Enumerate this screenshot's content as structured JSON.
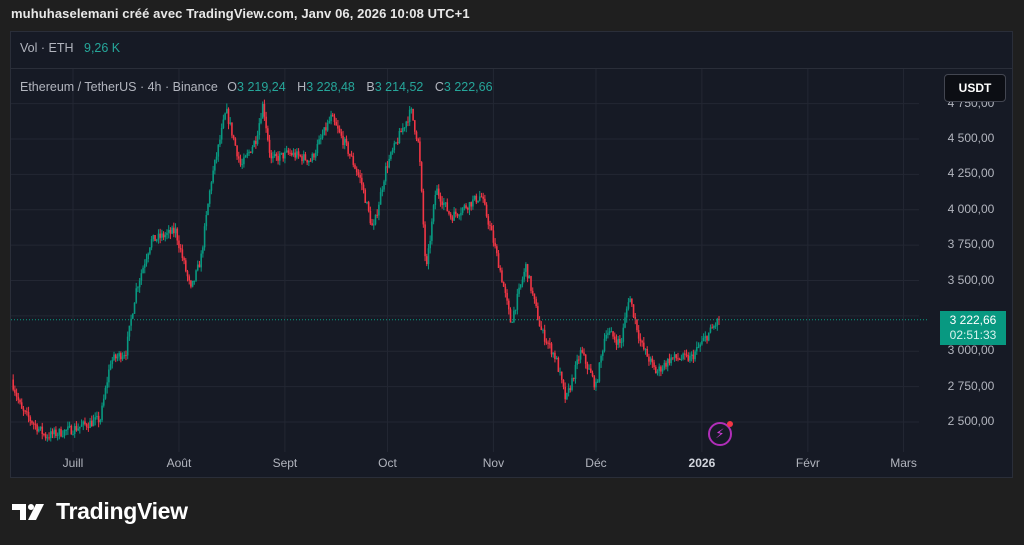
{
  "caption": "muhuhaselemani créé avec TradingView.com, Janv 06, 2026 10:08 UTC+1",
  "volume": {
    "label": "Vol · ETH",
    "value": "9,26 K"
  },
  "legend": {
    "symbol": "Ethereum / TetherUS · 4h · Binance",
    "open_label": "O",
    "open": "3 219,24",
    "high_label": "H",
    "high": "3 228,48",
    "low_label": "B",
    "low": "3 214,52",
    "close_label": "C",
    "close": "3 222,66"
  },
  "currency_button": "USDT",
  "last_price": {
    "price": "3 222,66",
    "countdown": "02:51:33"
  },
  "footer": {
    "brand": "TradingView"
  },
  "icons": {
    "alert": "lightning-icon",
    "logo": "tradingview-logo-icon"
  },
  "colors": {
    "up": "#089981",
    "down": "#f23645",
    "bg": "#161a25",
    "grid": "#232733",
    "accent": "#26a69a"
  },
  "chart_data": {
    "type": "candlestick",
    "interval": "4h",
    "x_unit": "days since Jul 1 2025",
    "ylim": [
      2300,
      4820
    ],
    "y_ticks": [
      {
        "value": 2500,
        "label": "2 500,00"
      },
      {
        "value": 2750,
        "label": "2 750,00"
      },
      {
        "value": 3000,
        "label": "3 000,00"
      },
      {
        "value": 3250,
        "label": ""
      },
      {
        "value": 3500,
        "label": "3 500,00"
      },
      {
        "value": 3750,
        "label": "3 750,00"
      },
      {
        "value": 4000,
        "label": "4 000,00"
      },
      {
        "value": 4250,
        "label": "4 250,00"
      },
      {
        "value": 4500,
        "label": "4 500,00"
      },
      {
        "value": 4750,
        "label": "4 750,00"
      }
    ],
    "x_ticks": [
      {
        "day": 0,
        "label": "Juill"
      },
      {
        "day": 31,
        "label": "Août"
      },
      {
        "day": 62,
        "label": "Sept"
      },
      {
        "day": 92,
        "label": "Oct"
      },
      {
        "day": 123,
        "label": "Nov"
      },
      {
        "day": 153,
        "label": "Déc"
      },
      {
        "day": 184,
        "label": "2026"
      },
      {
        "day": 215,
        "label": "Févr"
      },
      {
        "day": 243,
        "label": "Mars"
      }
    ],
    "xlim": [
      -18,
      255
    ],
    "close_path": [
      [
        -18,
        2800
      ],
      [
        -15,
        2580
      ],
      [
        -8,
        2400
      ],
      [
        0,
        2450
      ],
      [
        8,
        2520
      ],
      [
        11,
        2930
      ],
      [
        15.5,
        3000
      ],
      [
        18.4,
        3430
      ],
      [
        22.8,
        3780
      ],
      [
        30,
        3850
      ],
      [
        34.5,
        3430
      ],
      [
        37.4,
        3650
      ],
      [
        40.4,
        4200
      ],
      [
        44.8,
        4700
      ],
      [
        49.2,
        4300
      ],
      [
        53.5,
        4500
      ],
      [
        55.6,
        4750
      ],
      [
        57.9,
        4350
      ],
      [
        63.2,
        4400
      ],
      [
        69.6,
        4350
      ],
      [
        75.5,
        4650
      ],
      [
        79.9,
        4450
      ],
      [
        84.3,
        4200
      ],
      [
        87.8,
        3850
      ],
      [
        91.6,
        4300
      ],
      [
        96,
        4550
      ],
      [
        98.9,
        4700
      ],
      [
        101.2,
        4450
      ],
      [
        103.3,
        3550
      ],
      [
        106.2,
        4150
      ],
      [
        110.6,
        3950
      ],
      [
        116.4,
        4050
      ],
      [
        119.4,
        4100
      ],
      [
        122.3,
        3850
      ],
      [
        125.2,
        3550
      ],
      [
        128.1,
        3200
      ],
      [
        132.5,
        3600
      ],
      [
        136.9,
        3150
      ],
      [
        141.3,
        2950
      ],
      [
        144.2,
        2650
      ],
      [
        148.6,
        3000
      ],
      [
        153,
        2750
      ],
      [
        155.9,
        3150
      ],
      [
        160.3,
        3050
      ],
      [
        162.7,
        3400
      ],
      [
        166.2,
        3050
      ],
      [
        170.6,
        2850
      ],
      [
        174.9,
        2950
      ],
      [
        180.8,
        2950
      ],
      [
        185.2,
        3100
      ],
      [
        189,
        3222.66
      ]
    ],
    "last_close": 3222.66
  }
}
